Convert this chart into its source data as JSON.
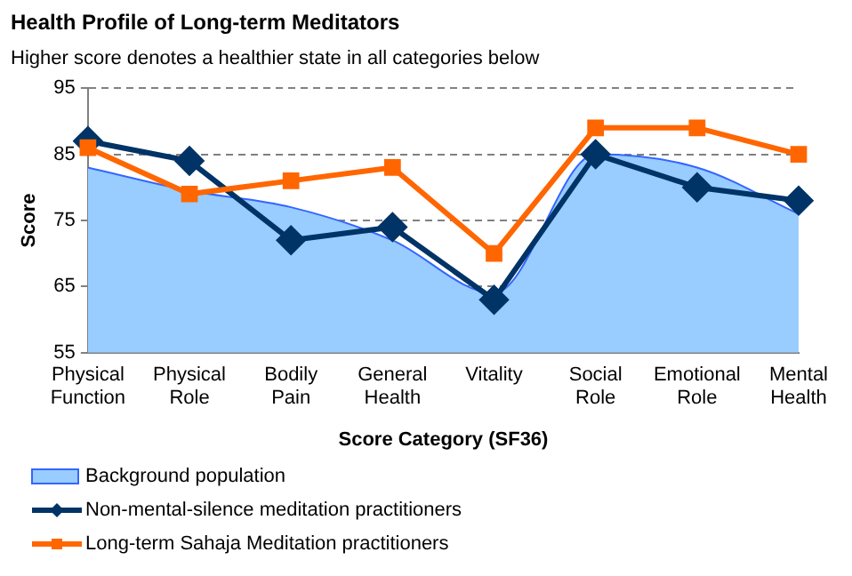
{
  "chart_data": {
    "type": "line",
    "title": "Health Profile of Long-term Meditators",
    "subtitle": "Higher score denotes a healthier state in all categories below",
    "xlabel": "Score Category (SF36)",
    "ylabel": "Score",
    "categories": [
      "Physical Function",
      "Physical Role",
      "Bodily Pain",
      "General Health",
      "Vitality",
      "Social Role",
      "Emotional Role",
      "Mental Health"
    ],
    "series": [
      {
        "name": "Background population",
        "type": "area",
        "color": "#99ccff",
        "values": [
          83,
          79.5,
          77,
          72,
          64,
          85,
          83,
          76
        ]
      },
      {
        "name": "Non-mental-silence meditation practitioners",
        "color": "#003366",
        "marker": "diamond",
        "values": [
          87,
          84,
          72,
          74,
          63,
          85,
          80,
          78
        ]
      },
      {
        "name": "Long-term Sahaja Meditation practitioners",
        "color": "#ff6600",
        "marker": "square",
        "values": [
          86,
          79,
          81,
          83,
          70,
          89,
          89,
          85
        ]
      }
    ],
    "ylim": [
      55,
      95
    ],
    "yticks": [
      55,
      65,
      75,
      85,
      95
    ],
    "grid": "y",
    "legend": "bottom left"
  }
}
